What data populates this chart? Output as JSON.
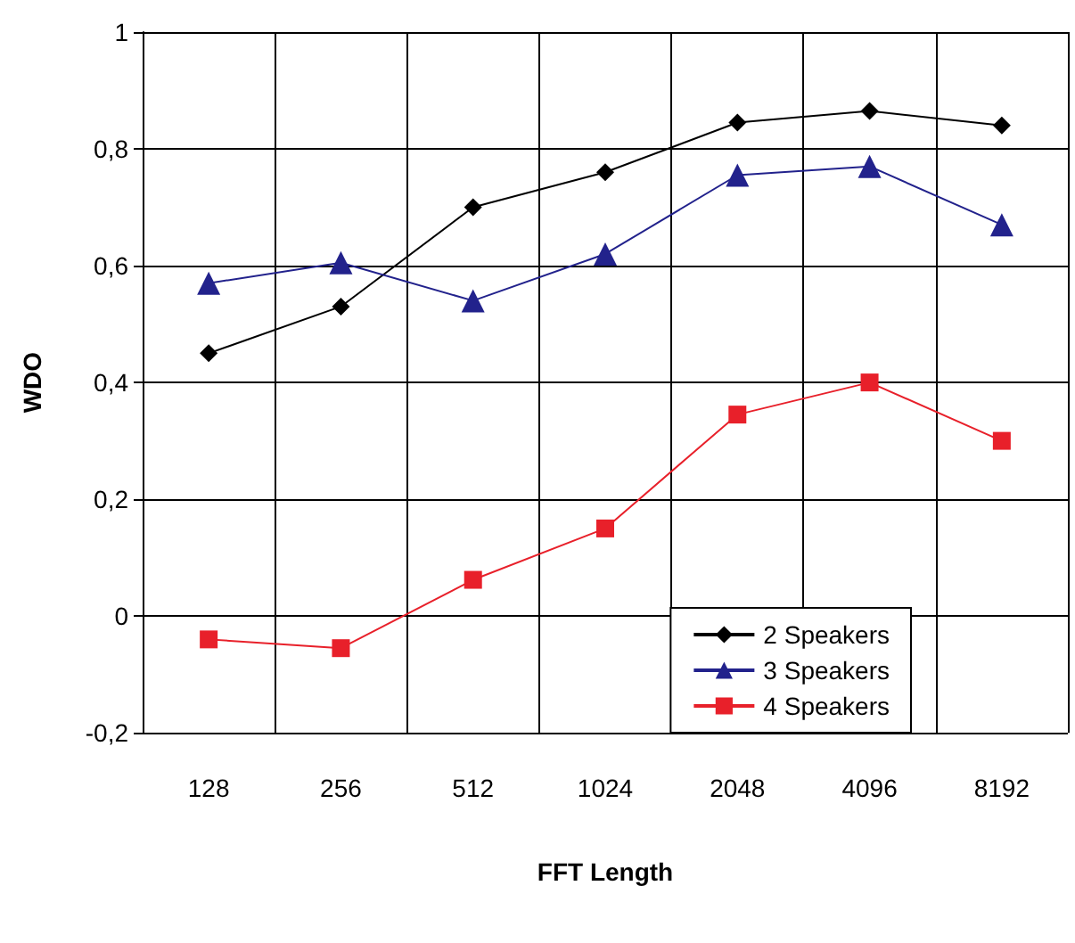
{
  "chart_data": {
    "type": "line",
    "xlabel": "FFT Length",
    "ylabel": "WDO",
    "categories": [
      "128",
      "256",
      "512",
      "1024",
      "2048",
      "4096",
      "8192"
    ],
    "series": [
      {
        "name": "2 Speakers",
        "color": "#000000",
        "marker": "diamond",
        "values": [
          0.45,
          0.53,
          0.7,
          0.76,
          0.845,
          0.865,
          0.84
        ]
      },
      {
        "name": "3 Speakers",
        "color": "#22228c",
        "marker": "triangle",
        "values": [
          0.57,
          0.605,
          0.54,
          0.62,
          0.755,
          0.77,
          0.67
        ]
      },
      {
        "name": "4 Speakers",
        "color": "#e8202a",
        "marker": "square",
        "values": [
          -0.04,
          -0.055,
          0.062,
          0.15,
          0.345,
          0.4,
          0.3
        ]
      }
    ],
    "ylim": [
      -0.2,
      1
    ],
    "yticks": [
      {
        "value": -0.2,
        "label": "-0,2"
      },
      {
        "value": 0,
        "label": "0"
      },
      {
        "value": 0.2,
        "label": "0,2"
      },
      {
        "value": 0.4,
        "label": "0,4"
      },
      {
        "value": 0.6,
        "label": "0,6"
      },
      {
        "value": 0.8,
        "label": "0,8"
      },
      {
        "value": 1,
        "label": "1"
      }
    ],
    "grid": true,
    "legend": "bottom right",
    "line_style": "solid"
  }
}
